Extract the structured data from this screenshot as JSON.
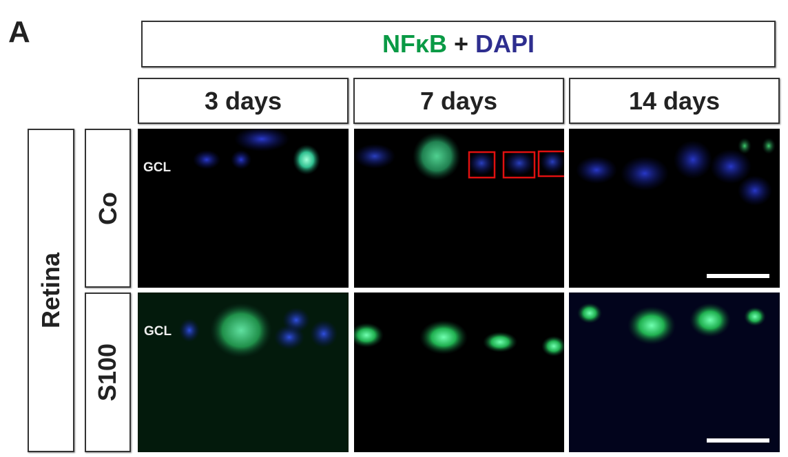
{
  "panel_label": "A",
  "title": {
    "stain1": "NFκB",
    "plus": "+",
    "stain2": "DAPI",
    "stain1_color": "#0a9a45",
    "stain2_color": "#2e2e8f"
  },
  "columns": [
    "3 days",
    "7 days",
    "14 days"
  ],
  "tissue_label": "Retina",
  "rows": [
    "Co",
    "S100"
  ],
  "layer_label": "GCL",
  "highlight_color": "#e01010"
}
